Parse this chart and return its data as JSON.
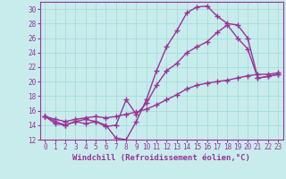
{
  "xlabel": "Windchill (Refroidissement éolien,°C)",
  "bg_color": "#c8ecec",
  "line_color": "#993399",
  "grid_color": "#aadddd",
  "xlim": [
    -0.5,
    23.5
  ],
  "ylim": [
    12,
    31
  ],
  "xticks": [
    0,
    1,
    2,
    3,
    4,
    5,
    6,
    7,
    8,
    9,
    10,
    11,
    12,
    13,
    14,
    15,
    16,
    17,
    18,
    19,
    20,
    21,
    22,
    23
  ],
  "yticks": [
    12,
    14,
    16,
    18,
    20,
    22,
    24,
    26,
    28,
    30
  ],
  "series1_x": [
    0,
    1,
    2,
    3,
    4,
    5,
    6,
    7,
    8,
    9,
    10,
    11,
    12,
    13,
    14,
    15,
    16,
    17,
    18,
    19,
    20,
    21,
    22,
    23
  ],
  "series1_y": [
    15.2,
    14.2,
    14.0,
    14.5,
    14.8,
    14.5,
    14.0,
    12.2,
    12.0,
    14.5,
    17.5,
    21.5,
    24.8,
    27.0,
    29.5,
    30.3,
    30.4,
    29.0,
    28.0,
    27.8,
    26.0,
    20.5,
    20.7,
    21.0
  ],
  "series2_x": [
    0,
    1,
    2,
    3,
    4,
    5,
    6,
    7,
    8,
    9,
    10,
    11,
    12,
    13,
    14,
    15,
    16,
    17,
    18,
    19,
    20,
    21,
    22,
    23
  ],
  "series2_y": [
    15.2,
    14.8,
    14.5,
    14.8,
    15.0,
    15.2,
    15.0,
    15.2,
    15.5,
    15.8,
    16.2,
    16.8,
    17.5,
    18.2,
    19.0,
    19.5,
    19.8,
    20.0,
    20.2,
    20.5,
    20.8,
    21.0,
    21.0,
    21.2
  ],
  "series3_x": [
    0,
    1,
    2,
    3,
    4,
    5,
    6,
    7,
    8,
    9,
    10,
    11,
    12,
    13,
    14,
    15,
    16,
    17,
    18,
    19,
    20,
    21,
    22,
    23
  ],
  "series3_y": [
    15.2,
    14.5,
    14.0,
    14.5,
    14.2,
    14.5,
    13.8,
    14.0,
    17.5,
    15.5,
    17.0,
    19.5,
    21.5,
    22.5,
    24.0,
    24.8,
    25.5,
    26.8,
    27.8,
    26.0,
    24.5,
    20.5,
    20.7,
    21.0
  ],
  "marker": "+",
  "markersize": 4,
  "linewidth": 1.0,
  "tick_fontsize": 5.5,
  "xlabel_fontsize": 6.5
}
